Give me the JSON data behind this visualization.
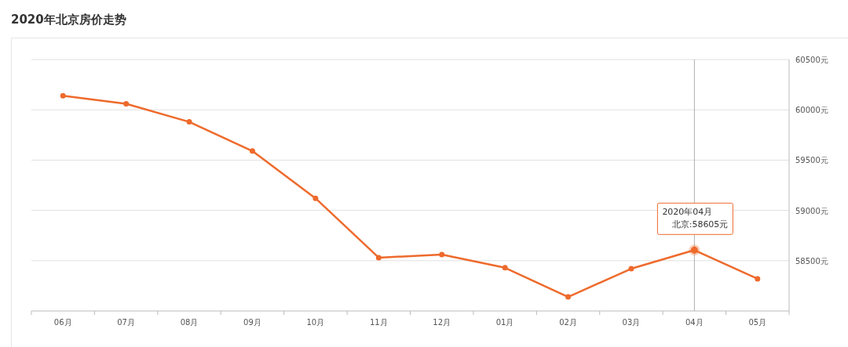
{
  "chart_data": {
    "type": "line",
    "title": "2020年北京房价走势",
    "categories": [
      "06月",
      "07月",
      "08月",
      "09月",
      "10月",
      "11月",
      "12月",
      "01月",
      "02月",
      "03月",
      "04月",
      "05月"
    ],
    "series": [
      {
        "color": "#ee6a2c",
        "values": [
          60140,
          60060,
          59880,
          59590,
          59120,
          58530,
          58560,
          58430,
          58140,
          58420,
          58605,
          58320
        ]
      }
    ],
    "ylim": [
      58000,
      60500
    ],
    "yticks": [
      {
        "value": 58500,
        "label": "58500元"
      },
      {
        "value": 59000,
        "label": "59000元"
      },
      {
        "value": 59500,
        "label": "59500元"
      },
      {
        "value": 60000,
        "label": "60000元"
      },
      {
        "value": 60500,
        "label": "60500元"
      }
    ],
    "grid": "y",
    "marker": "circle",
    "line_style": "solid",
    "ref_lines": [
      {
        "axis": "x",
        "value": "04月",
        "color": "#b0b0b0"
      }
    ],
    "annotations": [
      "2020年04月",
      {
        "text": "北京:58605元",
        "x": "04月",
        "y": 58605
      }
    ]
  }
}
